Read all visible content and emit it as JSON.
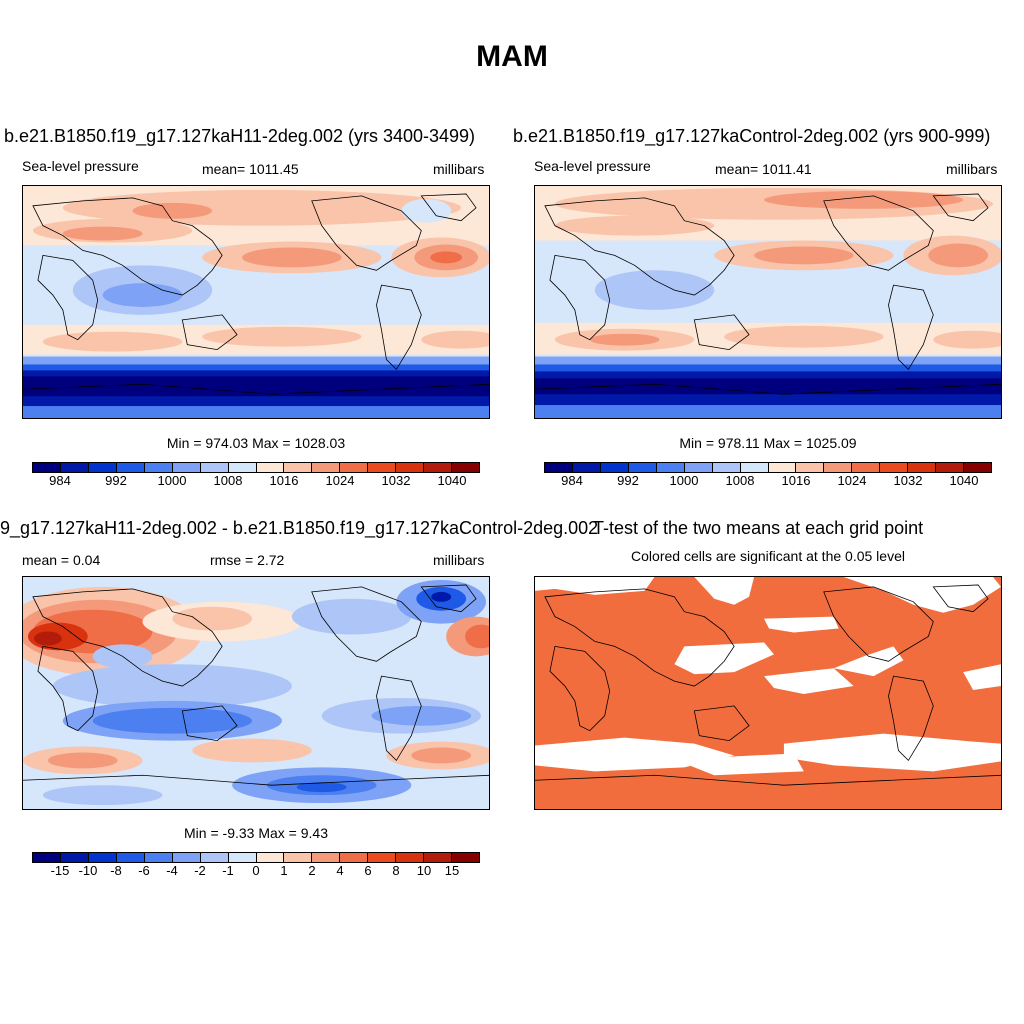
{
  "title": "MAM",
  "palette": [
    "#00007f",
    "#0019a8",
    "#0034cc",
    "#1f5ae6",
    "#4c7ff0",
    "#7ea2f5",
    "#aec6f7",
    "#d6e6fb",
    "#fde7d7",
    "#f9c4aa",
    "#f49a7b",
    "#ef6e48",
    "#ec4b1f",
    "#d8320f",
    "#b31b0b",
    "#870000"
  ],
  "land_outline_color": "#000000",
  "sig_color": "#f26d3d",
  "panels": [
    {
      "title": "b.e21.B1850.f19_g17.127kaH11-2deg.002 (yrs 3400-3499)",
      "left_label": "Sea-level pressure",
      "center_label": "mean= 1011.45",
      "right_label": "millibars",
      "minmax": "Min = 974.03 Max = 1028.03",
      "ticks": [
        "984",
        "992",
        "1000",
        "1008",
        "1016",
        "1024",
        "1032",
        "1040"
      ]
    },
    {
      "title": "b.e21.B1850.f19_g17.127kaControl-2deg.002 (yrs 900-999)",
      "left_label": "Sea-level pressure",
      "center_label": "mean= 1011.41",
      "right_label": "millibars",
      "minmax": "Min = 978.11 Max = 1025.09",
      "ticks": [
        "984",
        "992",
        "1000",
        "1008",
        "1016",
        "1024",
        "1032",
        "1040"
      ]
    },
    {
      "title": "9_g17.127kaH11-2deg.002 - b.e21.B1850.f19_g17.127kaControl-2deg.002",
      "left_label": "mean =   0.04",
      "center_label": "rmse =   2.72",
      "right_label": "millibars",
      "minmax": "Min =  -9.33 Max =   9.43",
      "ticks": [
        "-15",
        "-10",
        "-8",
        "-6",
        "-4",
        "-2",
        "-1",
        "0",
        "1",
        "2",
        "4",
        "6",
        "8",
        "10",
        "15"
      ]
    },
    {
      "title": "T-test of the two means at each grid point",
      "subtitle": "Colored cells are significant at the 0.05 level"
    }
  ]
}
